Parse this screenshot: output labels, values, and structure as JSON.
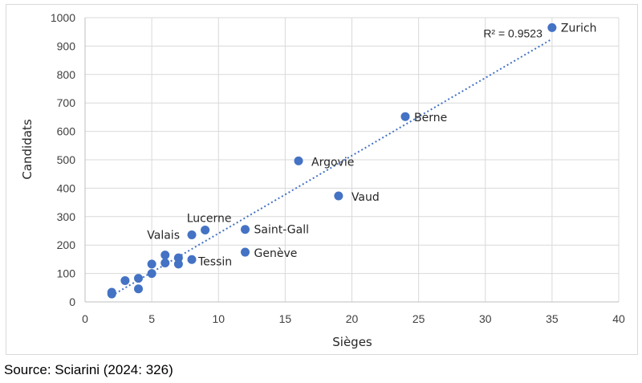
{
  "source_note": "Source: Sciarini (2024: 326)",
  "colors": {
    "marker": "#4472c4",
    "trendline": "#4472c4",
    "gridline": "#d9d9d9",
    "axis": "#bfbfbf",
    "text": "#262626"
  },
  "chart_data": {
    "type": "scatter",
    "title": "",
    "xlabel": "Sièges",
    "ylabel": "Candidats",
    "xlim": [
      0,
      40
    ],
    "ylim": [
      0,
      1000
    ],
    "x_ticks": [
      0,
      5,
      10,
      15,
      20,
      25,
      30,
      35,
      40
    ],
    "y_ticks": [
      0,
      100,
      200,
      300,
      400,
      500,
      600,
      700,
      800,
      900,
      1000
    ],
    "grid": "horizontal",
    "legend": "none",
    "trendline": {
      "type": "linear",
      "style": "dotted",
      "from": [
        2,
        22
      ],
      "to": [
        35,
        925
      ],
      "r2_label": "R² = 0.9523"
    },
    "points": [
      {
        "x": 2,
        "y": 28,
        "label": ""
      },
      {
        "x": 2,
        "y": 34,
        "label": ""
      },
      {
        "x": 3,
        "y": 75,
        "label": ""
      },
      {
        "x": 4,
        "y": 46,
        "label": ""
      },
      {
        "x": 4,
        "y": 83,
        "label": ""
      },
      {
        "x": 5,
        "y": 100,
        "label": ""
      },
      {
        "x": 5,
        "y": 133,
        "label": ""
      },
      {
        "x": 6,
        "y": 137,
        "label": ""
      },
      {
        "x": 6,
        "y": 165,
        "label": ""
      },
      {
        "x": 7,
        "y": 133,
        "label": ""
      },
      {
        "x": 7,
        "y": 155,
        "label": ""
      },
      {
        "x": 8,
        "y": 149,
        "label": "Tessin"
      },
      {
        "x": 8,
        "y": 236,
        "label": "Valais"
      },
      {
        "x": 9,
        "y": 253,
        "label": "Lucerne"
      },
      {
        "x": 12,
        "y": 255,
        "label": "Saint-Gall"
      },
      {
        "x": 12,
        "y": 175,
        "label": "Genève"
      },
      {
        "x": 16,
        "y": 496,
        "label": "Argovie"
      },
      {
        "x": 19,
        "y": 373,
        "label": "Vaud"
      },
      {
        "x": 24,
        "y": 652,
        "label": "Berne"
      },
      {
        "x": 35,
        "y": 965,
        "label": "Zurich"
      }
    ]
  }
}
